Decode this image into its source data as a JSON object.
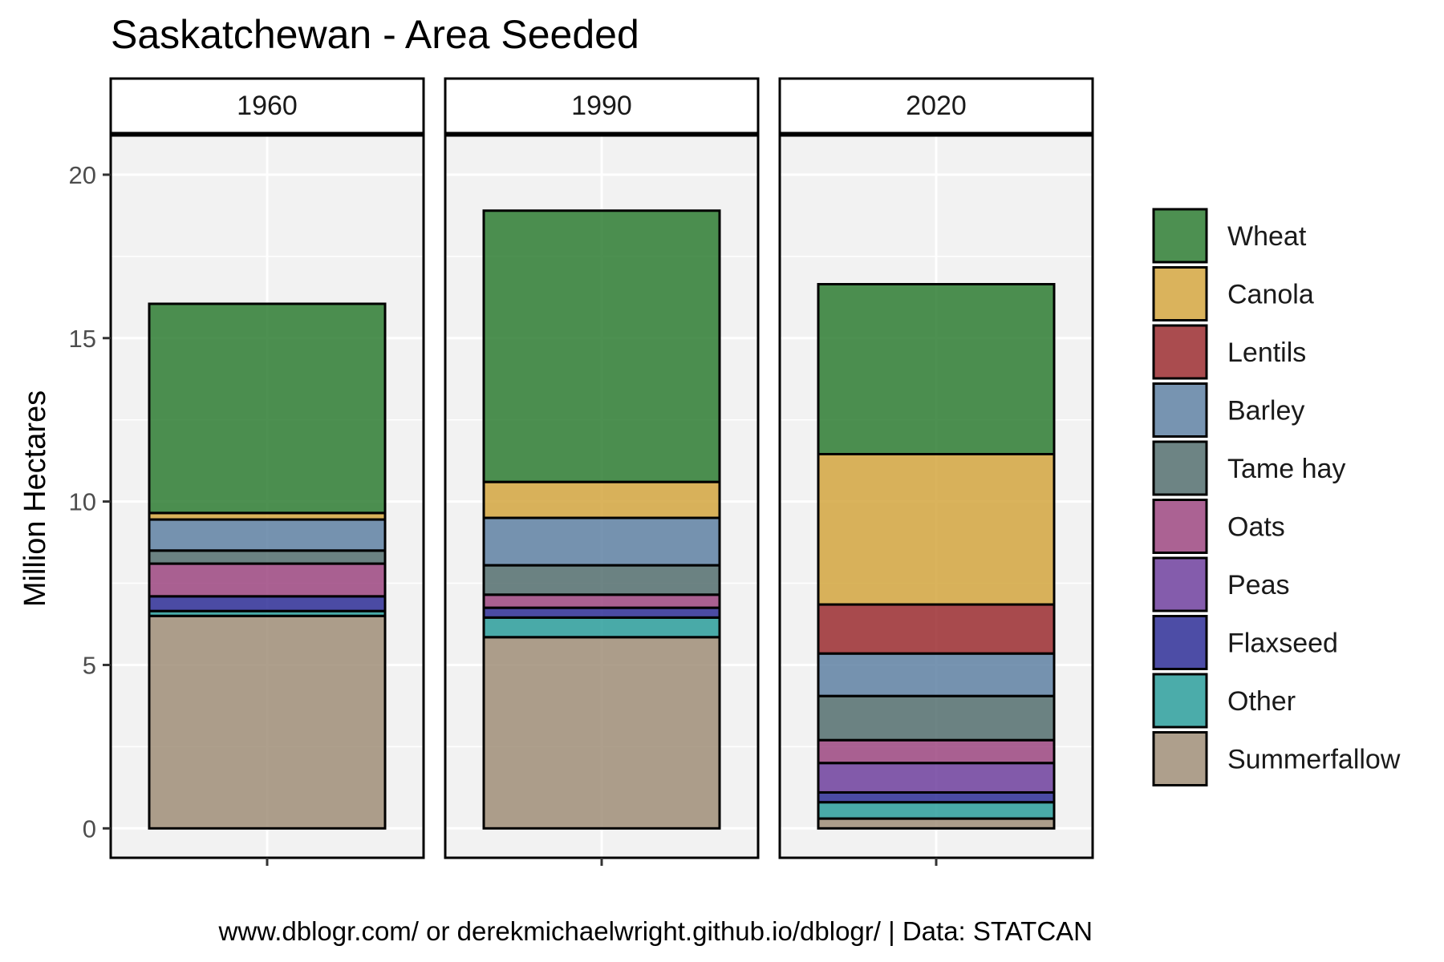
{
  "chart_data": {
    "type": "bar",
    "stacked": true,
    "faceted": true,
    "title": "Saskatchewan - Area Seeded",
    "ylabel": "Million Hectares",
    "xlabel": "",
    "ylim": [
      -0.9,
      21.2
    ],
    "yticks": [
      0,
      5,
      10,
      15,
      20
    ],
    "grid": true,
    "legend_position": "right",
    "caption": "www.dblogr.com/ or derekmichaelwright.github.io/dblogr/ | Data: STATCAN",
    "facets": [
      "1960",
      "1990",
      "2020"
    ],
    "stack_order_bottom_to_top": [
      "Summerfallow",
      "Other",
      "Flaxseed",
      "Peas",
      "Oats",
      "Tame hay",
      "Barley",
      "Lentils",
      "Canola",
      "Wheat"
    ],
    "series": [
      {
        "name": "Wheat",
        "color": "#2e7d32",
        "values": [
          6.4,
          8.3,
          5.2
        ]
      },
      {
        "name": "Canola",
        "color": "#d4a640",
        "values": [
          0.2,
          1.1,
          4.6
        ]
      },
      {
        "name": "Lentils",
        "color": "#9b2d30",
        "values": [
          0.0,
          0.0,
          1.5
        ]
      },
      {
        "name": "Barley",
        "color": "#5f81a3",
        "values": [
          0.95,
          1.45,
          1.3
        ]
      },
      {
        "name": "Tame hay",
        "color": "#546e6e",
        "values": [
          0.4,
          0.9,
          1.35
        ]
      },
      {
        "name": "Oats",
        "color": "#9c4680",
        "values": [
          1.0,
          0.4,
          0.7
        ]
      },
      {
        "name": "Peas",
        "color": "#6f3f9e",
        "values": [
          0.0,
          0.0,
          0.9
        ]
      },
      {
        "name": "Flaxseed",
        "color": "#2e2e96",
        "values": [
          0.45,
          0.3,
          0.3
        ]
      },
      {
        "name": "Other",
        "color": "#2b9e9b",
        "values": [
          0.15,
          0.6,
          0.5
        ]
      },
      {
        "name": "Summerfallow",
        "color": "#a08e78",
        "values": [
          6.5,
          5.85,
          0.3
        ]
      }
    ]
  }
}
